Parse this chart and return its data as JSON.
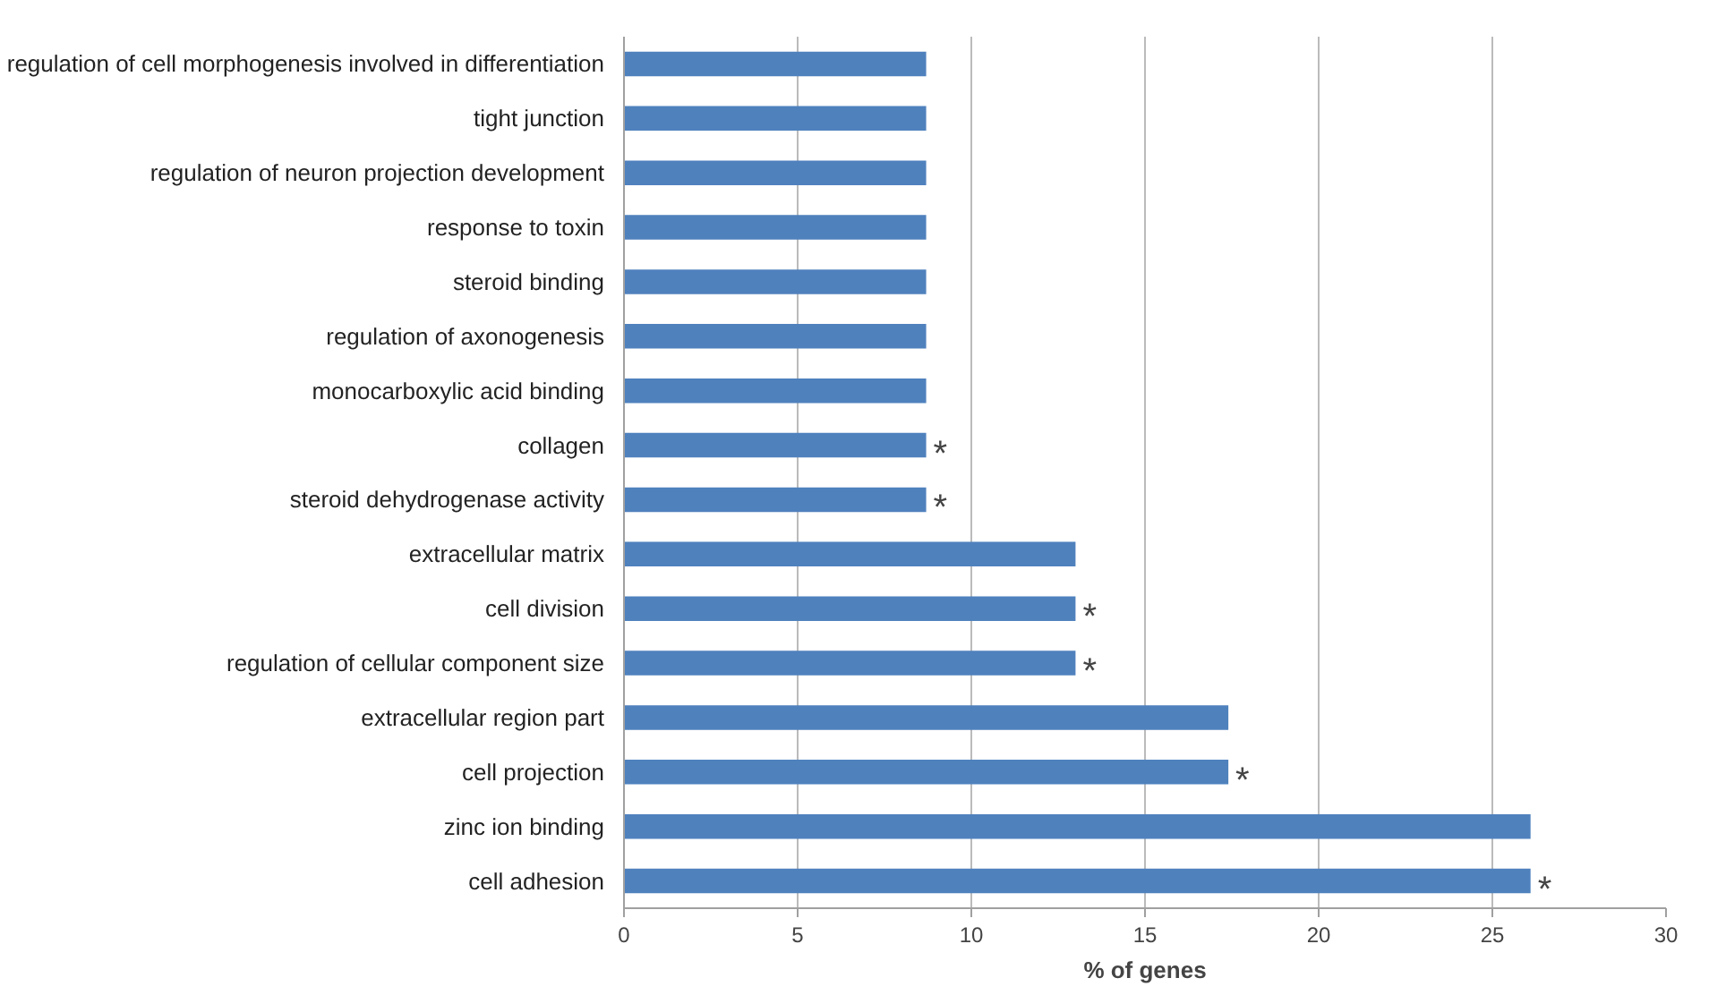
{
  "chart_data": {
    "type": "bar",
    "orientation": "horizontal",
    "xlabel": "% of genes",
    "categories": [
      "regulation of cell morphogenesis involved in differentiation",
      "tight junction",
      "regulation of neuron projection development",
      "response to toxin",
      "steroid binding",
      "regulation of axonogenesis",
      "monocarboxylic acid binding",
      "collagen",
      "steroid dehydrogenase activity",
      "extracellular matrix",
      "cell division",
      "regulation of cellular component size",
      "extracellular region part",
      "cell projection",
      "zinc ion binding",
      "cell adhesion"
    ],
    "values": [
      8.7,
      8.7,
      8.7,
      8.7,
      8.7,
      8.7,
      8.7,
      8.7,
      8.7,
      13.0,
      13.0,
      13.0,
      17.4,
      17.4,
      26.1,
      26.1
    ],
    "color": "#4f81bd",
    "xlim": [
      0,
      30
    ],
    "xticks": [
      0,
      5,
      10,
      15,
      20,
      25,
      30
    ],
    "grid": "x",
    "annotations": [
      {
        "text": "*",
        "x": 8.7,
        "y": "collagen"
      },
      {
        "text": "*",
        "x": 8.7,
        "y": "steroid dehydrogenase activity"
      },
      {
        "text": "*",
        "x": 13.0,
        "y": "cell division"
      },
      {
        "text": "*",
        "x": 13.0,
        "y": "regulation of cellular component size"
      },
      {
        "text": "*",
        "x": 17.4,
        "y": "cell projection"
      },
      {
        "text": "*",
        "x": 26.1,
        "y": "cell adhesion"
      }
    ]
  }
}
